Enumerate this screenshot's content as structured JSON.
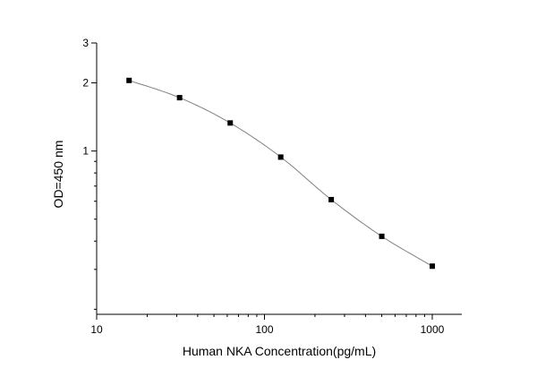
{
  "chart_data": {
    "type": "line",
    "title": "",
    "xlabel": "Human NKA  Concentration(pg/mL)",
    "ylabel": "OD=450 nm",
    "xscale": "log",
    "yscale": "log",
    "xlim": [
      10,
      1500
    ],
    "ylim": [
      0.19,
      3
    ],
    "xticks": [
      10,
      100,
      1000
    ],
    "xtick_labels": [
      "10",
      "100",
      "1000"
    ],
    "yticks": [
      1,
      2,
      3
    ],
    "ytick_labels": [
      "1",
      "2",
      "3"
    ],
    "grid": false,
    "legend": "none",
    "series": [
      {
        "x": [
          15.6,
          31.2,
          62.5,
          125,
          250,
          500,
          1000
        ],
        "y": [
          2.05,
          1.72,
          1.33,
          0.94,
          0.61,
          0.42,
          0.31
        ],
        "color": "#808080",
        "marker": "square",
        "marker_color": "#000000"
      }
    ]
  }
}
